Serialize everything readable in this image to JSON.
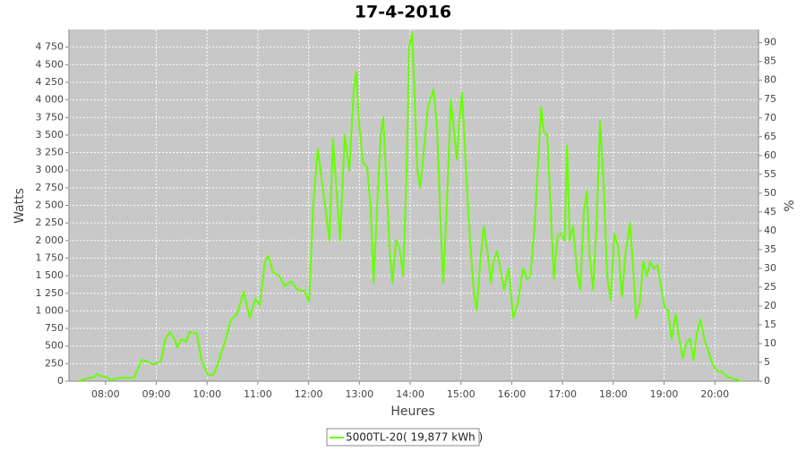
{
  "chart_data": {
    "type": "line",
    "title": "17-4-2016",
    "x_label": "Heures",
    "y_label": "Watts",
    "y2_label": "%",
    "grid": true,
    "xlim": [
      7.28,
      20.86
    ],
    "xticks": [
      {
        "value": 8,
        "label": "08:00"
      },
      {
        "value": 9,
        "label": "09:00"
      },
      {
        "value": 10,
        "label": "10:00"
      },
      {
        "value": 11,
        "label": "11:00"
      },
      {
        "value": 12,
        "label": "12:00"
      },
      {
        "value": 13,
        "label": "13:00"
      },
      {
        "value": 14,
        "label": "14:00"
      },
      {
        "value": 15,
        "label": "15:00"
      },
      {
        "value": 16,
        "label": "16:00"
      },
      {
        "value": 17,
        "label": "17:00"
      },
      {
        "value": 18,
        "label": "18:00"
      },
      {
        "value": 19,
        "label": "19:00"
      },
      {
        "value": 20,
        "label": "20:00"
      }
    ],
    "ylim": [
      0,
      5000
    ],
    "yticks": [
      0,
      250,
      500,
      750,
      {
        "value": 1000,
        "label": "1 000"
      },
      {
        "value": 1250,
        "label": "1 250"
      },
      {
        "value": 1500,
        "label": "1 500"
      },
      {
        "value": 1750,
        "label": "1 750"
      },
      {
        "value": 2000,
        "label": "2 000"
      },
      {
        "value": 2250,
        "label": "2 250"
      },
      {
        "value": 2500,
        "label": "2 500"
      },
      {
        "value": 2750,
        "label": "2 750"
      },
      {
        "value": 3000,
        "label": "3 000"
      },
      {
        "value": 3250,
        "label": "3 250"
      },
      {
        "value": 3500,
        "label": "3 500"
      },
      {
        "value": 3750,
        "label": "3 750"
      },
      {
        "value": 4000,
        "label": "4 000"
      },
      {
        "value": 4250,
        "label": "4 250"
      },
      {
        "value": 4500,
        "label": "4 500"
      },
      {
        "value": 4750,
        "label": "4 750"
      }
    ],
    "y2lim": [
      0,
      93.5
    ],
    "y2ticks": [
      0,
      5,
      10,
      15,
      20,
      25,
      30,
      35,
      40,
      45,
      50,
      55,
      60,
      65,
      70,
      75,
      80,
      85,
      90
    ],
    "x": [
      7.47,
      7.59,
      7.77,
      7.82,
      7.89,
      8.04,
      8.12,
      8.21,
      8.39,
      8.56,
      8.71,
      8.83,
      8.95,
      9.09,
      9.18,
      9.27,
      9.36,
      9.41,
      9.5,
      9.59,
      9.66,
      9.8,
      9.89,
      10.01,
      10.12,
      10.24,
      10.37,
      10.47,
      10.59,
      10.72,
      10.84,
      10.95,
      11.04,
      11.14,
      11.21,
      11.3,
      11.42,
      11.53,
      11.65,
      11.78,
      11.92,
      12.01,
      12.09,
      12.18,
      12.27,
      12.36,
      12.41,
      12.48,
      12.55,
      12.62,
      12.71,
      12.8,
      12.89,
      12.94,
      12.99,
      13.07,
      13.15,
      13.22,
      13.28,
      13.35,
      13.42,
      13.47,
      13.54,
      13.6,
      13.65,
      13.72,
      13.79,
      13.86,
      13.93,
      13.98,
      14.04,
      14.09,
      14.14,
      14.2,
      14.27,
      14.35,
      14.46,
      14.53,
      14.6,
      14.65,
      14.71,
      14.8,
      14.87,
      14.92,
      14.97,
      15.02,
      15.1,
      15.18,
      15.25,
      15.31,
      15.38,
      15.45,
      15.52,
      15.59,
      15.64,
      15.71,
      15.8,
      15.85,
      15.94,
      16.03,
      16.12,
      16.22,
      16.3,
      16.37,
      16.45,
      16.51,
      16.58,
      16.63,
      16.7,
      16.75,
      16.83,
      16.9,
      16.97,
      17.04,
      17.09,
      17.14,
      17.21,
      17.28,
      17.35,
      17.42,
      17.48,
      17.53,
      17.6,
      17.67,
      17.74,
      17.81,
      17.88,
      17.95,
      18.02,
      18.1,
      18.17,
      18.24,
      18.33,
      18.4,
      18.45,
      18.52,
      18.59,
      18.66,
      18.73,
      18.8,
      18.87,
      18.94,
      19.01,
      19.08,
      19.15,
      19.23,
      19.3,
      19.37,
      19.44,
      19.51,
      19.58,
      19.65,
      19.72,
      19.79,
      19.86,
      19.95,
      20.04,
      20.14,
      20.25,
      20.39,
      20.53
    ],
    "series": [
      {
        "name": "5000TL-20( 19,877 kWh )",
        "color": "#66ff00",
        "values": [
          0,
          30,
          60,
          100,
          80,
          50,
          10,
          40,
          50,
          50,
          300,
          280,
          240,
          280,
          600,
          700,
          600,
          480,
          600,
          560,
          700,
          680,
          300,
          100,
          80,
          300,
          600,
          880,
          950,
          1270,
          900,
          1170,
          1080,
          1700,
          1780,
          1550,
          1500,
          1350,
          1420,
          1300,
          1280,
          1130,
          2500,
          3300,
          2800,
          2300,
          2000,
          3450,
          2700,
          2000,
          3500,
          3000,
          4150,
          4400,
          3700,
          3100,
          3050,
          2500,
          1400,
          2500,
          3500,
          3750,
          2700,
          1800,
          1400,
          2000,
          1900,
          1500,
          3000,
          4750,
          4950,
          4000,
          3000,
          2750,
          3300,
          3900,
          4150,
          3600,
          2200,
          1400,
          2300,
          4000,
          3500,
          3150,
          3700,
          4100,
          3000,
          2000,
          1300,
          1000,
          1700,
          2200,
          1850,
          1400,
          1700,
          1850,
          1500,
          1300,
          1600,
          900,
          1100,
          1600,
          1450,
          1500,
          2200,
          3000,
          3900,
          3550,
          3500,
          2700,
          1450,
          2050,
          2100,
          2000,
          3350,
          2000,
          2200,
          1600,
          1300,
          2400,
          2700,
          1800,
          1300,
          2200,
          3700,
          2800,
          1500,
          1150,
          2100,
          1900,
          1200,
          1800,
          2250,
          1500,
          900,
          1100,
          1700,
          1500,
          1700,
          1600,
          1650,
          1350,
          1050,
          1000,
          600,
          950,
          600,
          320,
          550,
          600,
          300,
          700,
          880,
          600,
          450,
          250,
          150,
          130,
          60,
          30,
          0
        ]
      }
    ]
  }
}
